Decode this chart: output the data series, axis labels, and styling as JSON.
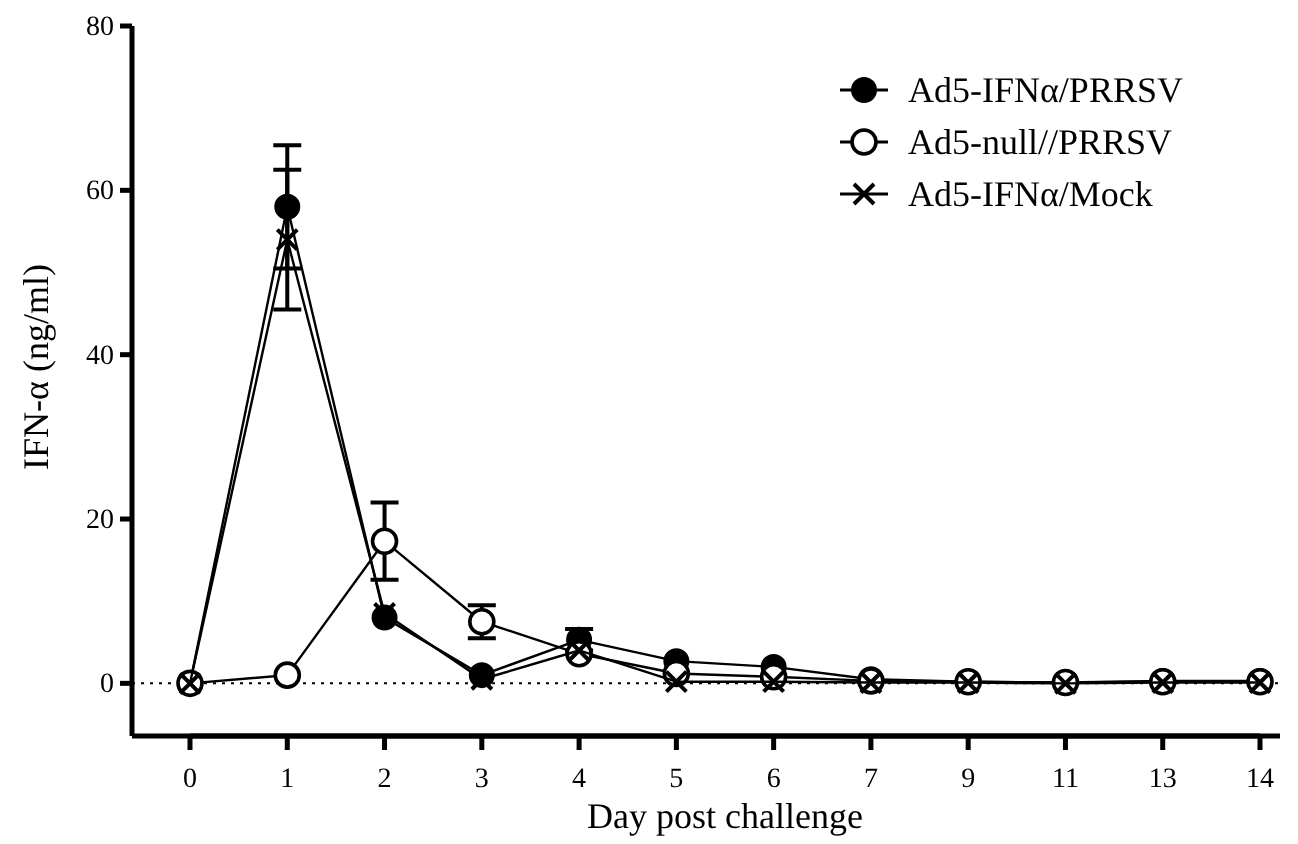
{
  "chart_data": {
    "type": "line",
    "xlabel": "Day post challenge",
    "ylabel": "IFN-α (ng/ml)",
    "categories": [
      "0",
      "1",
      "2",
      "3",
      "4",
      "5",
      "6",
      "7",
      "9",
      "11",
      "13",
      "14"
    ],
    "ylim": [
      -3,
      80
    ],
    "yticks": [
      0,
      20,
      40,
      60,
      80
    ],
    "legend": "top right",
    "line_style": "solid",
    "ref_lines": [
      {
        "axis": "y",
        "value": 0,
        "line_style": "dotted"
      }
    ],
    "series": [
      {
        "name": "Ad5-IFNα/PRRSV",
        "color": "#000000",
        "marker": "circle",
        "values": [
          0,
          58,
          8,
          1,
          5.3,
          2.7,
          2,
          0.5,
          0.2,
          0.1,
          0.3,
          0.3
        ],
        "errors": [
          null,
          7.5,
          null,
          null,
          1.3,
          null,
          null,
          null,
          null,
          null,
          null,
          null
        ]
      },
      {
        "name": "Ad5-null//PRRSV",
        "color": "#000000",
        "marker": "open-circle",
        "values": [
          0,
          1,
          17.3,
          7.5,
          3.6,
          1.2,
          0.8,
          0.3,
          0.2,
          0.1,
          0.2,
          0.2
        ],
        "errors": [
          null,
          null,
          4.7,
          2,
          null,
          null,
          null,
          null,
          null,
          null,
          null,
          null
        ]
      },
      {
        "name": "Ad5-IFNα/Mock",
        "color": "#000000",
        "marker": "cross",
        "values": [
          0,
          54,
          8.5,
          0.5,
          4,
          0.2,
          0.2,
          0.1,
          0.1,
          0,
          0.1,
          0.1
        ],
        "errors": [
          null,
          8.5,
          null,
          null,
          null,
          null,
          null,
          null,
          null,
          null,
          null,
          null
        ]
      }
    ]
  }
}
